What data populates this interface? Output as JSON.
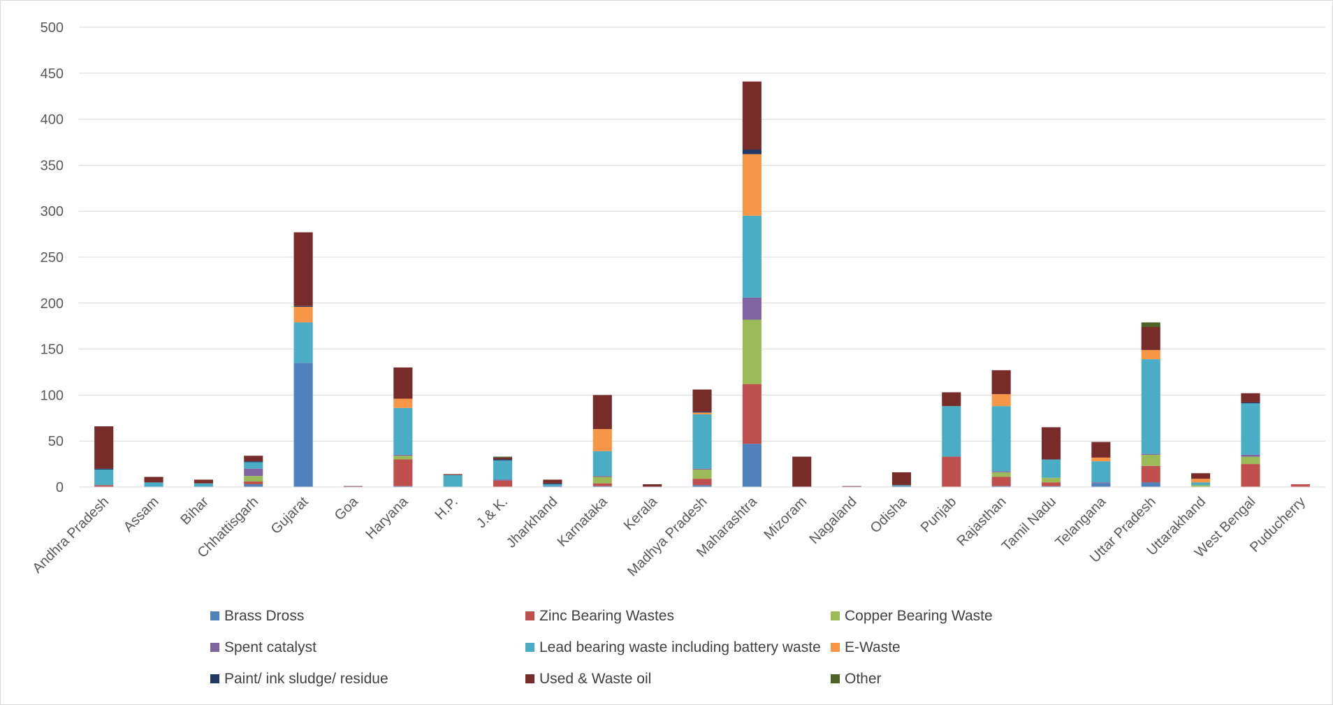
{
  "chart_data": {
    "type": "bar",
    "stacked": true,
    "title": "",
    "xlabel": "",
    "ylabel": "",
    "ylim": [
      0,
      500
    ],
    "yticks": [
      0,
      50,
      100,
      150,
      200,
      250,
      300,
      350,
      400,
      450,
      500
    ],
    "grid": true,
    "legend_position": "bottom",
    "categories": [
      "Andhra Pradesh",
      "Assam",
      "Bihar",
      "Chhattisgarh",
      "Gujarat",
      "Goa",
      "Haryana",
      "H.P.",
      "J.& K.",
      "Jharkhand",
      "Karnataka",
      "Kerala",
      "Madhya Pradesh",
      "Maharashtra",
      "Mizoram",
      "Nagaland",
      "Odisha",
      "Punjab",
      "Rajasthan",
      "Tamil Nadu",
      "Telangana",
      "Uttar Pradesh",
      "Uttarakhand",
      "West Bengal",
      "Puducherry"
    ],
    "series": [
      {
        "name": "Brass Dross",
        "color": "#4f81bd",
        "values": [
          0,
          0,
          0,
          3,
          135,
          0,
          1,
          0,
          0,
          1,
          1,
          0,
          2,
          47,
          0,
          0,
          1,
          0,
          1,
          1,
          4,
          5,
          0,
          0,
          0
        ]
      },
      {
        "name": "Zinc Bearing Wastes",
        "color": "#c0504d",
        "values": [
          2,
          0,
          0,
          3,
          0,
          0,
          29,
          0,
          7,
          0,
          3,
          0,
          7,
          65,
          0,
          0,
          0,
          33,
          10,
          4,
          0,
          18,
          0,
          25,
          3
        ]
      },
      {
        "name": "Copper Bearing Waste",
        "color": "#9bbb59",
        "values": [
          0,
          0,
          0,
          6,
          0,
          0,
          4,
          0,
          0,
          0,
          7,
          0,
          10,
          70,
          0,
          0,
          0,
          0,
          5,
          5,
          0,
          12,
          2,
          8,
          0
        ]
      },
      {
        "name": "Spent catalyst",
        "color": "#8064a2",
        "values": [
          0,
          0,
          0,
          8,
          0,
          0,
          1,
          0,
          1,
          0,
          1,
          0,
          1,
          24,
          0,
          0,
          0,
          0,
          1,
          0,
          1,
          1,
          0,
          2,
          0
        ]
      },
      {
        "name": "Lead bearing waste including battery waste",
        "color": "#4bacc6",
        "values": [
          17,
          5,
          4,
          7,
          44,
          0,
          51,
          13,
          21,
          2,
          27,
          0,
          59,
          89,
          0,
          0,
          1,
          55,
          71,
          20,
          23,
          103,
          3,
          56,
          0
        ]
      },
      {
        "name": "E-Waste",
        "color": "#f79646",
        "values": [
          0,
          0,
          0,
          0,
          17,
          0,
          10,
          0,
          0,
          0,
          24,
          0,
          2,
          67,
          0,
          0,
          0,
          0,
          13,
          0,
          4,
          10,
          4,
          0,
          0
        ]
      },
      {
        "name": "Paint/ ink sludge/ residue",
        "color": "#1f3864",
        "values": [
          1,
          0,
          0,
          1,
          1,
          0,
          0,
          0,
          1,
          1,
          0,
          0,
          1,
          5,
          0,
          0,
          0,
          0,
          0,
          0,
          0,
          0,
          0,
          1,
          0
        ]
      },
      {
        "name": "Used & Waste oil",
        "color": "#772c2a",
        "values": [
          46,
          6,
          4,
          6,
          80,
          1,
          34,
          1,
          2,
          4,
          37,
          3,
          24,
          74,
          33,
          1,
          14,
          15,
          26,
          35,
          17,
          25,
          6,
          10,
          0
        ]
      },
      {
        "name": "Other",
        "color": "#4f6228",
        "values": [
          0,
          0,
          0,
          0,
          0,
          0,
          0,
          0,
          1,
          0,
          0,
          0,
          0,
          0,
          0,
          0,
          0,
          0,
          0,
          0,
          0,
          5,
          0,
          0,
          0
        ]
      }
    ]
  }
}
